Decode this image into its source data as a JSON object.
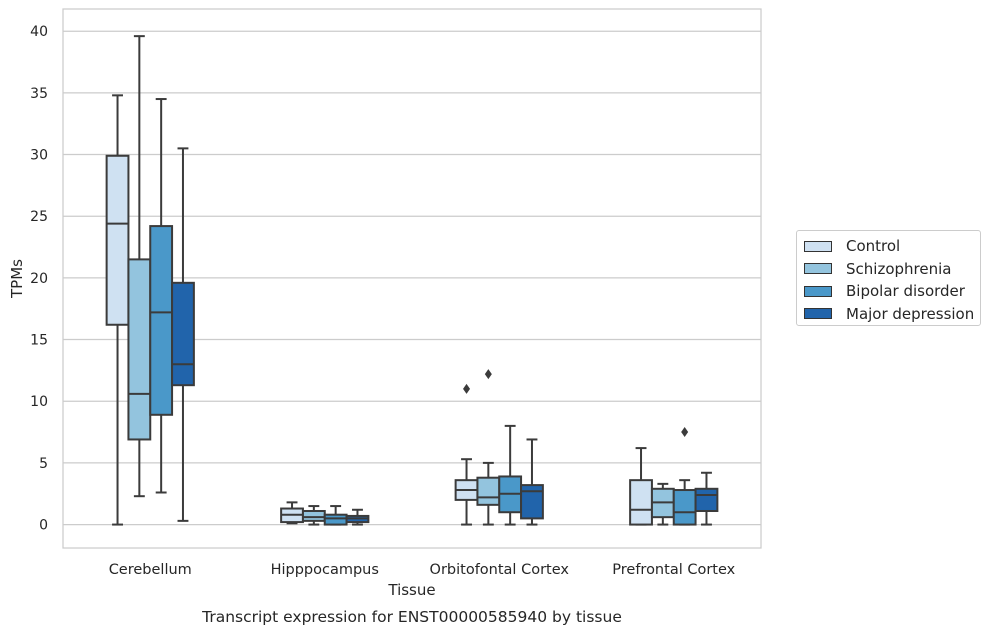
{
  "chart_data": {
    "type": "boxplot",
    "title": "Transcript expression for ENST00000585940 by tissue",
    "xlabel": "Tissue",
    "ylabel": "TPMs",
    "ylim": [
      -1.9,
      41.8
    ],
    "yticks": [
      0,
      5,
      10,
      15,
      20,
      25,
      30,
      35,
      40
    ],
    "grid": "horizontal",
    "legend_position": "right",
    "categories": [
      "Cerebellum",
      "Hipppocampus",
      "Orbitofontal Cortex",
      "Prefrontal Cortex"
    ],
    "series": [
      {
        "name": "Control",
        "color": "#cfe1f2",
        "boxes": [
          {
            "whislo": 0,
            "q1": 16.2,
            "med": 24.4,
            "q3": 29.9,
            "whishi": 34.8,
            "fliers": []
          },
          {
            "whislo": 0.1,
            "q1": 0.2,
            "med": 0.8,
            "q3": 1.3,
            "whishi": 1.8,
            "fliers": []
          },
          {
            "whislo": 0,
            "q1": 2.0,
            "med": 2.8,
            "q3": 3.6,
            "whishi": 5.3,
            "fliers": [
              11.0
            ]
          },
          {
            "whislo": 0,
            "q1": 0,
            "med": 1.2,
            "q3": 3.6,
            "whishi": 6.2,
            "fliers": []
          }
        ]
      },
      {
        "name": "Schizophrenia",
        "color": "#93c4de",
        "boxes": [
          {
            "whislo": 2.3,
            "q1": 6.9,
            "med": 10.6,
            "q3": 21.5,
            "whishi": 39.6,
            "fliers": []
          },
          {
            "whislo": 0,
            "q1": 0.3,
            "med": 0.6,
            "q3": 1.1,
            "whishi": 1.5,
            "fliers": []
          },
          {
            "whislo": 0,
            "q1": 1.6,
            "med": 2.2,
            "q3": 3.8,
            "whishi": 5.0,
            "fliers": [
              12.2
            ]
          },
          {
            "whislo": 0,
            "q1": 0.6,
            "med": 1.8,
            "q3": 2.9,
            "whishi": 3.3,
            "fliers": []
          }
        ]
      },
      {
        "name": "Bipolar disorder",
        "color": "#4a98c9",
        "boxes": [
          {
            "whislo": 2.6,
            "q1": 8.9,
            "med": 17.2,
            "q3": 24.2,
            "whishi": 34.5,
            "fliers": []
          },
          {
            "whislo": 0,
            "q1": 0,
            "med": 0.5,
            "q3": 0.8,
            "whishi": 1.5,
            "fliers": []
          },
          {
            "whislo": 0,
            "q1": 1.0,
            "med": 2.5,
            "q3": 3.9,
            "whishi": 8.0,
            "fliers": []
          },
          {
            "whislo": 0,
            "q1": 0,
            "med": 1.0,
            "q3": 2.8,
            "whishi": 3.6,
            "fliers": [
              7.5
            ]
          }
        ]
      },
      {
        "name": "Major depression",
        "color": "#2164ab",
        "boxes": [
          {
            "whislo": 0.3,
            "q1": 11.3,
            "med": 13.0,
            "q3": 19.6,
            "whishi": 30.5,
            "fliers": []
          },
          {
            "whislo": 0,
            "q1": 0.2,
            "med": 0.5,
            "q3": 0.7,
            "whishi": 1.2,
            "fliers": []
          },
          {
            "whislo": 0,
            "q1": 0.5,
            "med": 2.7,
            "q3": 3.2,
            "whishi": 6.9,
            "fliers": []
          },
          {
            "whislo": 0,
            "q1": 1.1,
            "med": 2.4,
            "q3": 2.9,
            "whishi": 4.2,
            "fliers": []
          }
        ]
      }
    ]
  }
}
